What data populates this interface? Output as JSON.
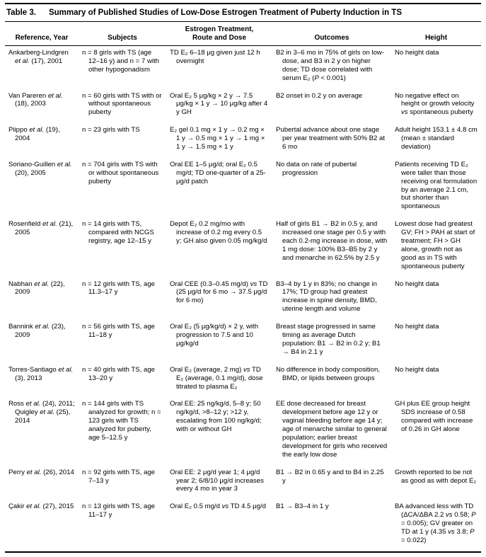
{
  "table": {
    "label": "Table 3.",
    "title": "Summary of Published Studies of Low-Dose Estrogen Treatment of Puberty Induction in TS",
    "columns": [
      "Reference, Year",
      "Subjects",
      "Estrogen Treatment,\nRoute and Dose",
      "Outcomes",
      "Height"
    ],
    "rows": [
      {
        "reference": "Ankarberg-Lindgren et al. (17), 2001",
        "subjects": "n = 8 girls with TS (age 12–16 y) and n = 7 with other hypogonadism",
        "treatment": "TD E₂ 6–18 μg given just 12 h overnight",
        "outcomes": "B2 in 3–6 mo in 75% of girls on low-dose, and B3 in 2 y on higher dose; TD dose correlated with serum E₂ (P < 0.001)",
        "height": "No height data"
      },
      {
        "reference": "Van Pareren et al. (18), 2003",
        "subjects": "n = 60 girls with TS with or without spontaneous puberty",
        "treatment": "Oral E₂ 5 μg/kg × 2 y → 7.5 μg/kg × 1 y → 10 μg/kg after 4 y GH",
        "outcomes": "B2 onset in 0.2 y on average",
        "height": "No negative effect on height or growth velocity vs spontaneous puberty"
      },
      {
        "reference": "Piippo et al. (19), 2004",
        "subjects": "n = 23 girls with TS",
        "treatment": "E₂ gel 0.1 mg × 1 y → 0.2 mg × 1 y → 0.5 mg × 1 y → 1 mg × 1 y → 1.5 mg × 1 y",
        "outcomes": "Pubertal advance about one stage per year treatment with 50% B2 at 6 mo",
        "height": "Adult height 153.1 ± 4.8 cm (mean ± standard deviation)"
      },
      {
        "reference": "Soriano-Guillen et al. (20), 2005",
        "subjects": "n = 704 girls with TS with or without spontaneous puberty",
        "treatment": "Oral EE 1–5 μg/d; oral E₂ 0.5 mg/d; TD one-quarter of a 25-μg/d patch",
        "outcomes": "No data on rate of pubertal progression",
        "height": "Patients receiving TD E₂ were taller than those receiving oral formulation by an average 2.1 cm, but shorter than spontaneous"
      },
      {
        "reference": "Rosenfield et al. (21), 2005",
        "subjects": "n = 14 girls with TS, compared with NCGS registry, age 12–15 y",
        "treatment": "Depot E₂ 0.2 mg/mo with increase of 0.2 mg every 0.5 y; GH also given 0.05 mg/kg/d",
        "outcomes": "Half of girls B1 → B2 in 0.5 y, and increased one stage per 0.5 y with each 0.2-mg increase in dose, with 1 mg dose: 100% B3–B5 by 2 y and menarche in 62.5% by 2.5 y",
        "height": "Lowest dose had greatest GV; FH > PAH at start of treatment; FH > GH alone, growth not as good as in TS with spontaneous puberty"
      },
      {
        "reference": "Nabhan et al. (22), 2009",
        "subjects": "n = 12 girls with TS, age 11.3–17 y",
        "treatment": "Oral CEE (0.3–0.45 mg/d) vs TD (25 μg/d for 6 mo → 37.5 μg/d for 6 mo)",
        "outcomes": "B3–4 by 1 y in 83%; no change in 17%; TD group had greatest increase in spine density, BMD, uterine length and volume",
        "height": "No height data"
      },
      {
        "reference": "Bannink et al. (23), 2009",
        "subjects": "n = 56 girls with TS, age 11–18 y",
        "treatment": "Oral E₂ (5 μg/kg/d) × 2 y, with progression to 7.5 and 10 μg/kg/d",
        "outcomes": "Breast stage progressed in same timing as average Dutch population: B1 → B2 in 0.2 y; B1 → B4 in 2.1 y",
        "height": "No height data"
      },
      {
        "reference": "Torres-Santiago et al. (3), 2013",
        "subjects": "n = 40 girls with TS, age 13–20 y",
        "treatment": "Oral E₂ (average, 2 mg) vs TD E₂ (average, 0.1 mg/d), dose titrated to plasma E₂",
        "outcomes": "No difference in body composition, BMD, or lipids between groups",
        "height": "No height data"
      },
      {
        "reference": "Ross et al. (24), 2011; Quigley et al. (25), 2014",
        "subjects": "n = 144 girls with TS analyzed for growth; n = 123 girls with TS analyzed for puberty, age 5–12.5 y",
        "treatment": "Oral EE: 25 ng/kg/d, 5–8 y; 50 ng/kg/d, >8–12 y; >12 y, escalating from 100 ng/kg/d; with or without GH",
        "outcomes": "EE dose decreased for breast development before age 12 y or vaginal bleeding before age 14 y; age of menarche similar to general population; earlier breast development for girls who received the early low dose",
        "height": "GH plus EE group height SDS increase of 0.58 compared with increase of 0.26 in GH alone"
      },
      {
        "reference": "Perry et al. (26), 2014",
        "subjects": "n = 92 girls with TS, age 7–13 y",
        "treatment": "Oral EE: 2 μg/d year 1; 4 μg/d year 2; 6/8/10 μg/d increases every 4 mo in year 3",
        "outcomes": "B1 → B2 in 0.65 y and to B4 in 2.25 y",
        "height": "Growth reported to be not as good as with depot E₂"
      },
      {
        "reference": "Çakir et al. (27), 2015",
        "subjects": "n = 13 girls with TS, age 11–17 y",
        "treatment": "Oral E₂ 0.5 mg/d vs TD 4.5 μg/d",
        "outcomes": "B1 → B3–4 in 1 y",
        "height": "BA advanced less with TD (ΔCA/ΔBA 2.2 vs 0.58; P = 0.005); GV greater on TD at 1 y (4.35 vs 3.8; P = 0.022)"
      }
    ]
  }
}
